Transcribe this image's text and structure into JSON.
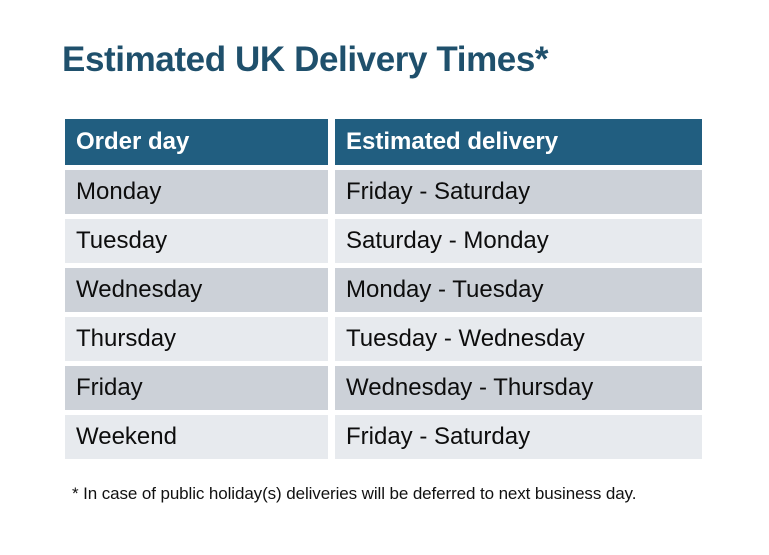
{
  "chart_data": {
    "type": "table",
    "title": "Estimated UK Delivery Times*",
    "columns": [
      "Order day",
      "Estimated delivery"
    ],
    "rows": [
      [
        "Monday",
        "Friday - Saturday"
      ],
      [
        "Tuesday",
        "Saturday - Monday"
      ],
      [
        "Wednesday",
        "Monday - Tuesday"
      ],
      [
        "Thursday",
        "Tuesday - Wednesday"
      ],
      [
        "Friday",
        "Wednesday - Thursday"
      ],
      [
        "Weekend",
        "Friday - Saturday"
      ]
    ],
    "footnote": "* In case of public holiday(s) deliveries will be deferred to next business day.",
    "layout_hints": {
      "header_style": "solid fill, white bold text",
      "row_style": "alternating gray bands separated by white gaps",
      "grid": "off"
    }
  },
  "colors": {
    "page_bg": "#ffffff",
    "title_color": "#1f506c",
    "header_bg": "#215e80",
    "header_text": "#ffffff",
    "row_dark": "#ccd1d8",
    "row_light": "#e7eaee",
    "cell_text": "#0d0d0d",
    "footnote_text": "#111111"
  }
}
